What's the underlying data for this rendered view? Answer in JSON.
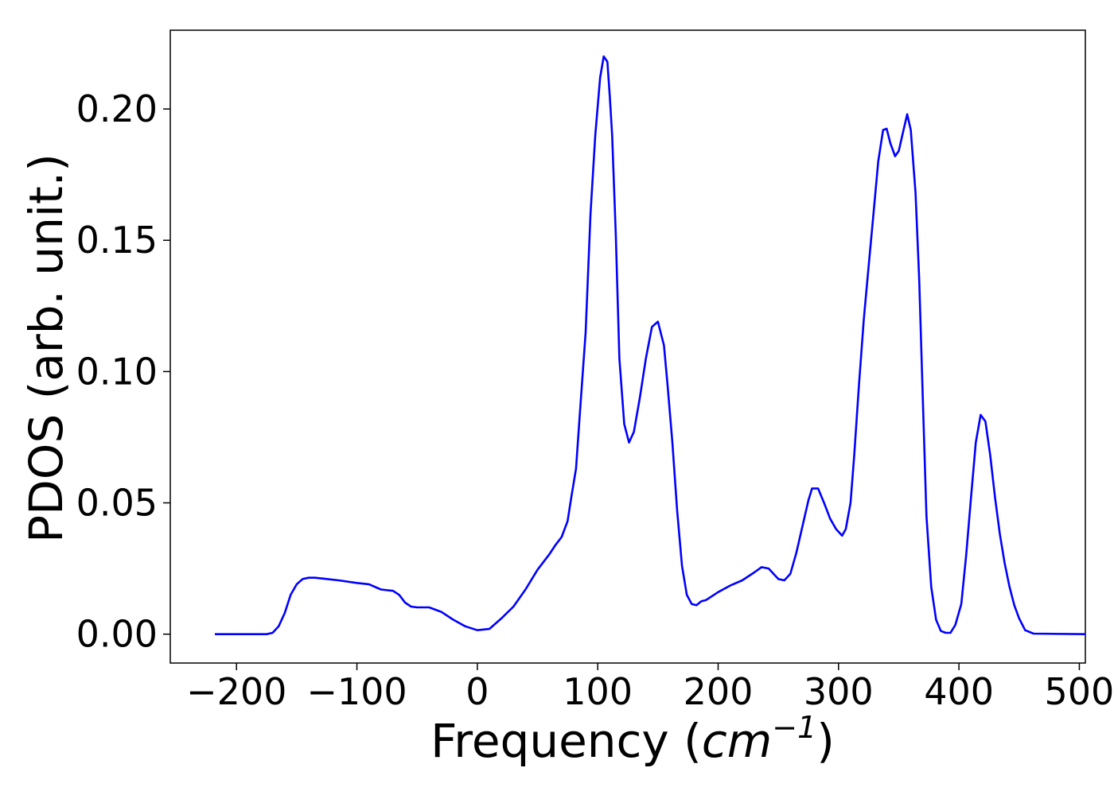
{
  "chart_data": {
    "type": "line",
    "xlabel_main": "Frequency (",
    "xlabel_unit": "cm",
    "xlabel_exp": "−1",
    "xlabel_close": ")",
    "ylabel": "PDOS (arb. unit.)",
    "xlim": [
      -255,
      505
    ],
    "ylim": [
      -0.011,
      0.23
    ],
    "x_ticks": [
      -200,
      -100,
      0,
      100,
      200,
      300,
      400,
      500
    ],
    "x_tick_labels": [
      "−200",
      "−100",
      "0",
      "100",
      "200",
      "300",
      "400",
      "500"
    ],
    "y_ticks": [
      0.0,
      0.05,
      0.1,
      0.15,
      0.2
    ],
    "y_tick_labels": [
      "0.00",
      "0.05",
      "0.10",
      "0.15",
      "0.20"
    ],
    "grid": false,
    "series": [
      {
        "color": "#0000ff",
        "x": [
          -218,
          -175,
          -170,
          -165,
          -160,
          -155,
          -150,
          -145,
          -140,
          -135,
          -125,
          -115,
          -100,
          -90,
          -80,
          -70,
          -65,
          -60,
          -55,
          -50,
          -40,
          -30,
          -20,
          -10,
          0,
          10,
          20,
          30,
          40,
          50,
          60,
          65,
          70,
          75,
          78,
          82,
          85,
          90,
          94,
          98,
          102,
          105,
          108,
          110,
          112,
          115,
          118,
          122,
          126,
          130,
          135,
          140,
          145,
          150,
          155,
          158,
          162,
          166,
          170,
          174,
          178,
          182,
          186,
          190,
          200,
          210,
          220,
          230,
          236,
          242,
          250,
          255,
          260,
          265,
          270,
          275,
          278,
          283,
          288,
          293,
          298,
          303,
          306,
          310,
          313,
          317,
          321,
          325,
          329,
          333,
          337,
          340,
          343,
          347,
          350,
          353,
          357,
          360,
          364,
          367,
          370,
          373,
          377,
          381,
          385,
          389,
          393,
          397,
          402,
          406,
          410,
          414,
          418,
          422,
          426,
          430,
          434,
          438,
          442,
          446,
          450,
          455,
          462,
          505
        ],
        "y": [
          0,
          0,
          0.0005,
          0.003,
          0.008,
          0.015,
          0.019,
          0.021,
          0.0215,
          0.0215,
          0.021,
          0.0205,
          0.0195,
          0.019,
          0.017,
          0.0165,
          0.015,
          0.012,
          0.0105,
          0.0102,
          0.0102,
          0.0085,
          0.0055,
          0.003,
          0.0015,
          0.002,
          0.006,
          0.0105,
          0.017,
          0.0245,
          0.0305,
          0.034,
          0.037,
          0.043,
          0.052,
          0.063,
          0.083,
          0.115,
          0.16,
          0.19,
          0.212,
          0.22,
          0.218,
          0.205,
          0.19,
          0.152,
          0.105,
          0.08,
          0.073,
          0.077,
          0.09,
          0.105,
          0.117,
          0.119,
          0.11,
          0.095,
          0.073,
          0.047,
          0.026,
          0.015,
          0.0115,
          0.011,
          0.0125,
          0.013,
          0.016,
          0.0185,
          0.0205,
          0.0235,
          0.0255,
          0.025,
          0.021,
          0.0205,
          0.023,
          0.031,
          0.041,
          0.051,
          0.0555,
          0.0555,
          0.05,
          0.044,
          0.04,
          0.0375,
          0.04,
          0.05,
          0.068,
          0.095,
          0.12,
          0.14,
          0.16,
          0.18,
          0.192,
          0.1925,
          0.187,
          0.182,
          0.184,
          0.19,
          0.198,
          0.192,
          0.168,
          0.135,
          0.09,
          0.045,
          0.018,
          0.0055,
          0.0012,
          0.0005,
          0.0005,
          0.0035,
          0.0115,
          0.03,
          0.052,
          0.073,
          0.0835,
          0.081,
          0.068,
          0.052,
          0.038,
          0.027,
          0.018,
          0.011,
          0.006,
          0.0015,
          0.0002,
          0
        ]
      }
    ]
  }
}
